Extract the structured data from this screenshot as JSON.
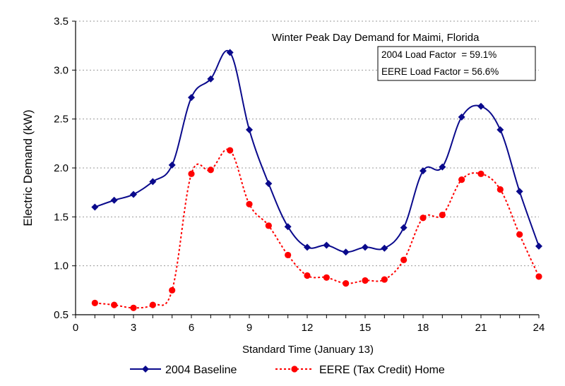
{
  "chart_data": {
    "type": "line",
    "title": "Winter Peak Day Demand for Maimi, Florida",
    "annotations": [
      "2004 Load Factor  = 59.1%",
      "EERE Load Factor = 56.6%"
    ],
    "xlabel": "Standard Time (January 13)",
    "ylabel": "Electric Demand (kW)",
    "xlim": [
      0,
      24
    ],
    "ylim": [
      0.5,
      3.5
    ],
    "xticks": [
      0,
      3,
      6,
      9,
      12,
      15,
      18,
      21,
      24
    ],
    "yticks": [
      0.5,
      1.0,
      1.5,
      2.0,
      2.5,
      3.0,
      3.5
    ],
    "xtick_labels": [
      "0",
      "3",
      "6",
      "9",
      "12",
      "15",
      "18",
      "21",
      "24"
    ],
    "ytick_labels": [
      "0.5",
      "1.0",
      "1.5",
      "2.0",
      "2.5",
      "3.0",
      "3.5"
    ],
    "grid": "horizontal dotted",
    "legend_position": "bottom",
    "x": [
      1,
      2,
      3,
      4,
      5,
      6,
      7,
      8,
      9,
      10,
      11,
      12,
      13,
      14,
      15,
      16,
      17,
      18,
      19,
      20,
      21,
      22,
      23,
      24
    ],
    "series": [
      {
        "name": "2004 Baseline",
        "color": "#0a0a8c",
        "marker": "diamond",
        "line_style": "solid",
        "values": [
          1.6,
          1.67,
          1.73,
          1.86,
          2.03,
          2.72,
          2.91,
          3.18,
          2.39,
          1.84,
          1.4,
          1.19,
          1.21,
          1.14,
          1.19,
          1.18,
          1.39,
          1.97,
          2.01,
          2.52,
          2.63,
          2.39,
          1.76,
          1.2
        ]
      },
      {
        "name": "EERE (Tax Credit) Home",
        "color": "#ff0000",
        "marker": "circle",
        "line_style": "dotted",
        "values": [
          0.62,
          0.6,
          0.57,
          0.6,
          0.75,
          1.94,
          1.98,
          2.18,
          1.63,
          1.41,
          1.11,
          0.9,
          0.88,
          0.82,
          0.85,
          0.86,
          1.06,
          1.49,
          1.52,
          1.88,
          1.94,
          1.78,
          1.32,
          0.89
        ]
      }
    ]
  }
}
